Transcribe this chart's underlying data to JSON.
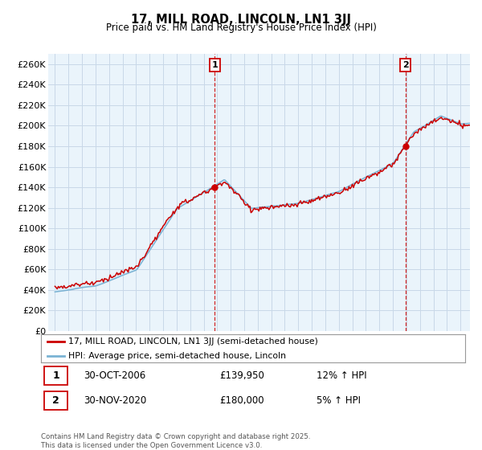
{
  "title1": "17, MILL ROAD, LINCOLN, LN1 3JJ",
  "title2": "Price paid vs. HM Land Registry's House Price Index (HPI)",
  "legend1": "17, MILL ROAD, LINCOLN, LN1 3JJ (semi-detached house)",
  "legend2": "HPI: Average price, semi-detached house, Lincoln",
  "annotation1_label": "1",
  "annotation1_date": "30-OCT-2006",
  "annotation1_price": "£139,950",
  "annotation1_hpi": "12% ↑ HPI",
  "annotation2_label": "2",
  "annotation2_date": "30-NOV-2020",
  "annotation2_price": "£180,000",
  "annotation2_hpi": "5% ↑ HPI",
  "footer": "Contains HM Land Registry data © Crown copyright and database right 2025.\nThis data is licensed under the Open Government Licence v3.0.",
  "sale1_year": 2006.83,
  "sale1_value": 139950,
  "sale2_year": 2020.92,
  "sale2_value": 180000,
  "hpi_color": "#7ab3d4",
  "hpi_fill_color": "#d6eaf8",
  "sale_color": "#cc0000",
  "vline_color": "#cc0000",
  "background_color": "#ffffff",
  "grid_color": "#c8d8e8",
  "chart_bg_color": "#eaf4fb",
  "ylim": [
    0,
    270000
  ],
  "yticks": [
    0,
    20000,
    40000,
    60000,
    80000,
    100000,
    120000,
    140000,
    160000,
    180000,
    200000,
    220000,
    240000,
    260000
  ],
  "xlim_start": 1994.5,
  "xlim_end": 2025.7
}
